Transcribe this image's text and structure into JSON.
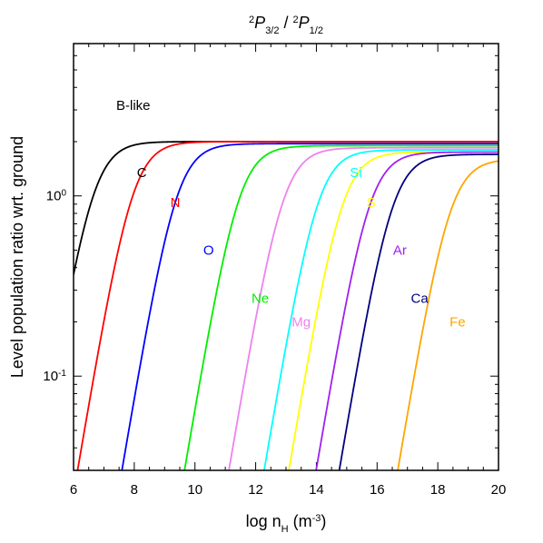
{
  "chart_data": {
    "type": "line",
    "title_parts": {
      "num_sup": "2",
      "num_main": "P",
      "num_sub": "3/2",
      "slash": " / ",
      "den_sup": "2",
      "den_main": "P",
      "den_sub": "1/2"
    },
    "annotation": "B-like",
    "xlabel_parts": {
      "pre": "log n",
      "sub": "H",
      "mid": " (m",
      "sup": "-3",
      "post": ")"
    },
    "ylabel": "Level population ratio wrt. ground",
    "xlim": [
      6,
      20
    ],
    "ylim": [
      0.03,
      7
    ],
    "yscale": "log",
    "xticks": [
      6,
      8,
      10,
      12,
      14,
      16,
      18,
      20
    ],
    "yticks": [
      {
        "value": 1.0,
        "base": "10",
        "exp": "0"
      },
      {
        "value": 0.1,
        "base": "10",
        "exp": "-1"
      }
    ],
    "series": [
      {
        "name": "C",
        "color": "#000000",
        "sat": 2.0,
        "d50": 6.65,
        "label_x": 8.25,
        "label_y": 1.35
      },
      {
        "name": "N",
        "color": "#ff0000",
        "sat": 2.0,
        "d50": 7.95,
        "label_x": 9.35,
        "label_y": 0.92
      },
      {
        "name": "O",
        "color": "#0000ff",
        "sat": 1.95,
        "d50": 9.4,
        "label_x": 10.45,
        "label_y": 0.5
      },
      {
        "name": "Ne",
        "color": "#00ee00",
        "sat": 1.9,
        "d50": 11.45,
        "label_x": 12.15,
        "label_y": 0.27
      },
      {
        "name": "Mg",
        "color": "#ee82ee",
        "sat": 1.85,
        "d50": 12.9,
        "label_x": 13.5,
        "label_y": 0.2
      },
      {
        "name": "Si",
        "color": "#00ffff",
        "sat": 1.8,
        "d50": 14.05,
        "label_x": 15.3,
        "label_y": 1.35
      },
      {
        "name": "S",
        "color": "#ffff00",
        "sat": 1.75,
        "d50": 14.85,
        "label_x": 15.8,
        "label_y": 0.92
      },
      {
        "name": "Ar",
        "color": "#a020f0",
        "sat": 1.75,
        "d50": 15.75,
        "label_x": 16.75,
        "label_y": 0.5
      },
      {
        "name": "Ca",
        "color": "#000080",
        "sat": 1.7,
        "d50": 16.5,
        "label_x": 17.4,
        "label_y": 0.27
      },
      {
        "name": "Fe",
        "color": "#ffa500",
        "sat": 1.6,
        "d50": 18.4,
        "label_x": 18.65,
        "label_y": 0.2
      }
    ]
  }
}
